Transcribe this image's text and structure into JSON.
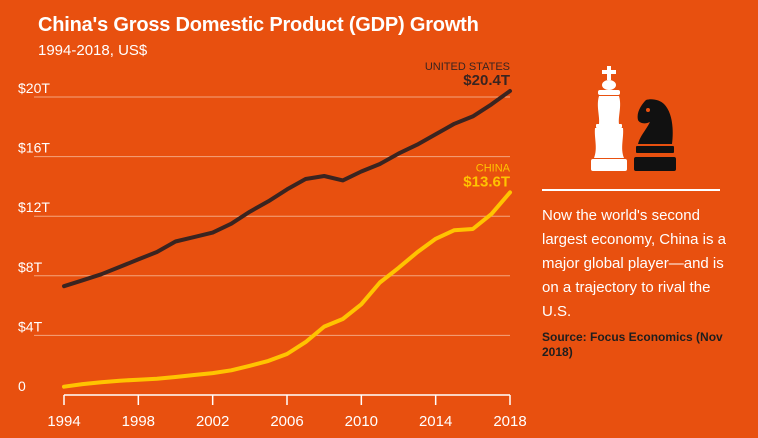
{
  "header": {
    "title": "China's Gross Domestic Product (GDP) Growth",
    "subtitle": "1994-2018, US$"
  },
  "colors": {
    "background": "#e8500f",
    "us_line": "#3a2420",
    "china_line": "#ffc400",
    "gridline": "#f4a57e"
  },
  "icons": [
    "white-king-chess-icon",
    "black-knight-chess-icon"
  ],
  "sidebar": {
    "note": "Now the world's second largest economy, China is a major global player—and is on a trajectory to rival the U.S.",
    "source": "Source: Focus Economics (Nov 2018)"
  },
  "chart_data": {
    "type": "line",
    "title": "China's Gross Domestic Product (GDP) Growth",
    "subtitle": "1994-2018, US$",
    "xlabel": "",
    "ylabel": "",
    "xlim": [
      1994,
      2018
    ],
    "ylim": [
      0,
      20
    ],
    "x_ticks": [
      1994,
      1998,
      2002,
      2006,
      2010,
      2014,
      2018
    ],
    "y_ticks": [
      {
        "value": 0,
        "label": "0"
      },
      {
        "value": 4,
        "label": "$4T"
      },
      {
        "value": 8,
        "label": "$8T"
      },
      {
        "value": 12,
        "label": "$12T"
      },
      {
        "value": 16,
        "label": "$16T"
      },
      {
        "value": 20,
        "label": "$20T"
      }
    ],
    "grid": true,
    "legend": "end-of-line labels",
    "x": [
      1994,
      1995,
      1996,
      1997,
      1998,
      1999,
      2000,
      2001,
      2002,
      2003,
      2004,
      2005,
      2006,
      2007,
      2008,
      2009,
      2010,
      2011,
      2012,
      2013,
      2014,
      2015,
      2016,
      2017,
      2018
    ],
    "series": [
      {
        "name": "UNITED STATES",
        "end_label": "$20.4T",
        "color": "#3a2420",
        "values": [
          7.3,
          7.7,
          8.1,
          8.6,
          9.1,
          9.6,
          10.3,
          10.6,
          10.9,
          11.5,
          12.3,
          13.0,
          13.8,
          14.5,
          14.7,
          14.4,
          15.0,
          15.5,
          16.2,
          16.8,
          17.5,
          18.2,
          18.7,
          19.5,
          20.4
        ]
      },
      {
        "name": "CHINA",
        "end_label": "$13.6T",
        "color": "#ffc400",
        "values": [
          0.56,
          0.73,
          0.86,
          0.96,
          1.03,
          1.09,
          1.21,
          1.34,
          1.47,
          1.66,
          1.96,
          2.29,
          2.75,
          3.55,
          4.59,
          5.1,
          6.09,
          7.55,
          8.53,
          9.57,
          10.48,
          11.06,
          11.14,
          12.14,
          13.6
        ]
      }
    ]
  }
}
